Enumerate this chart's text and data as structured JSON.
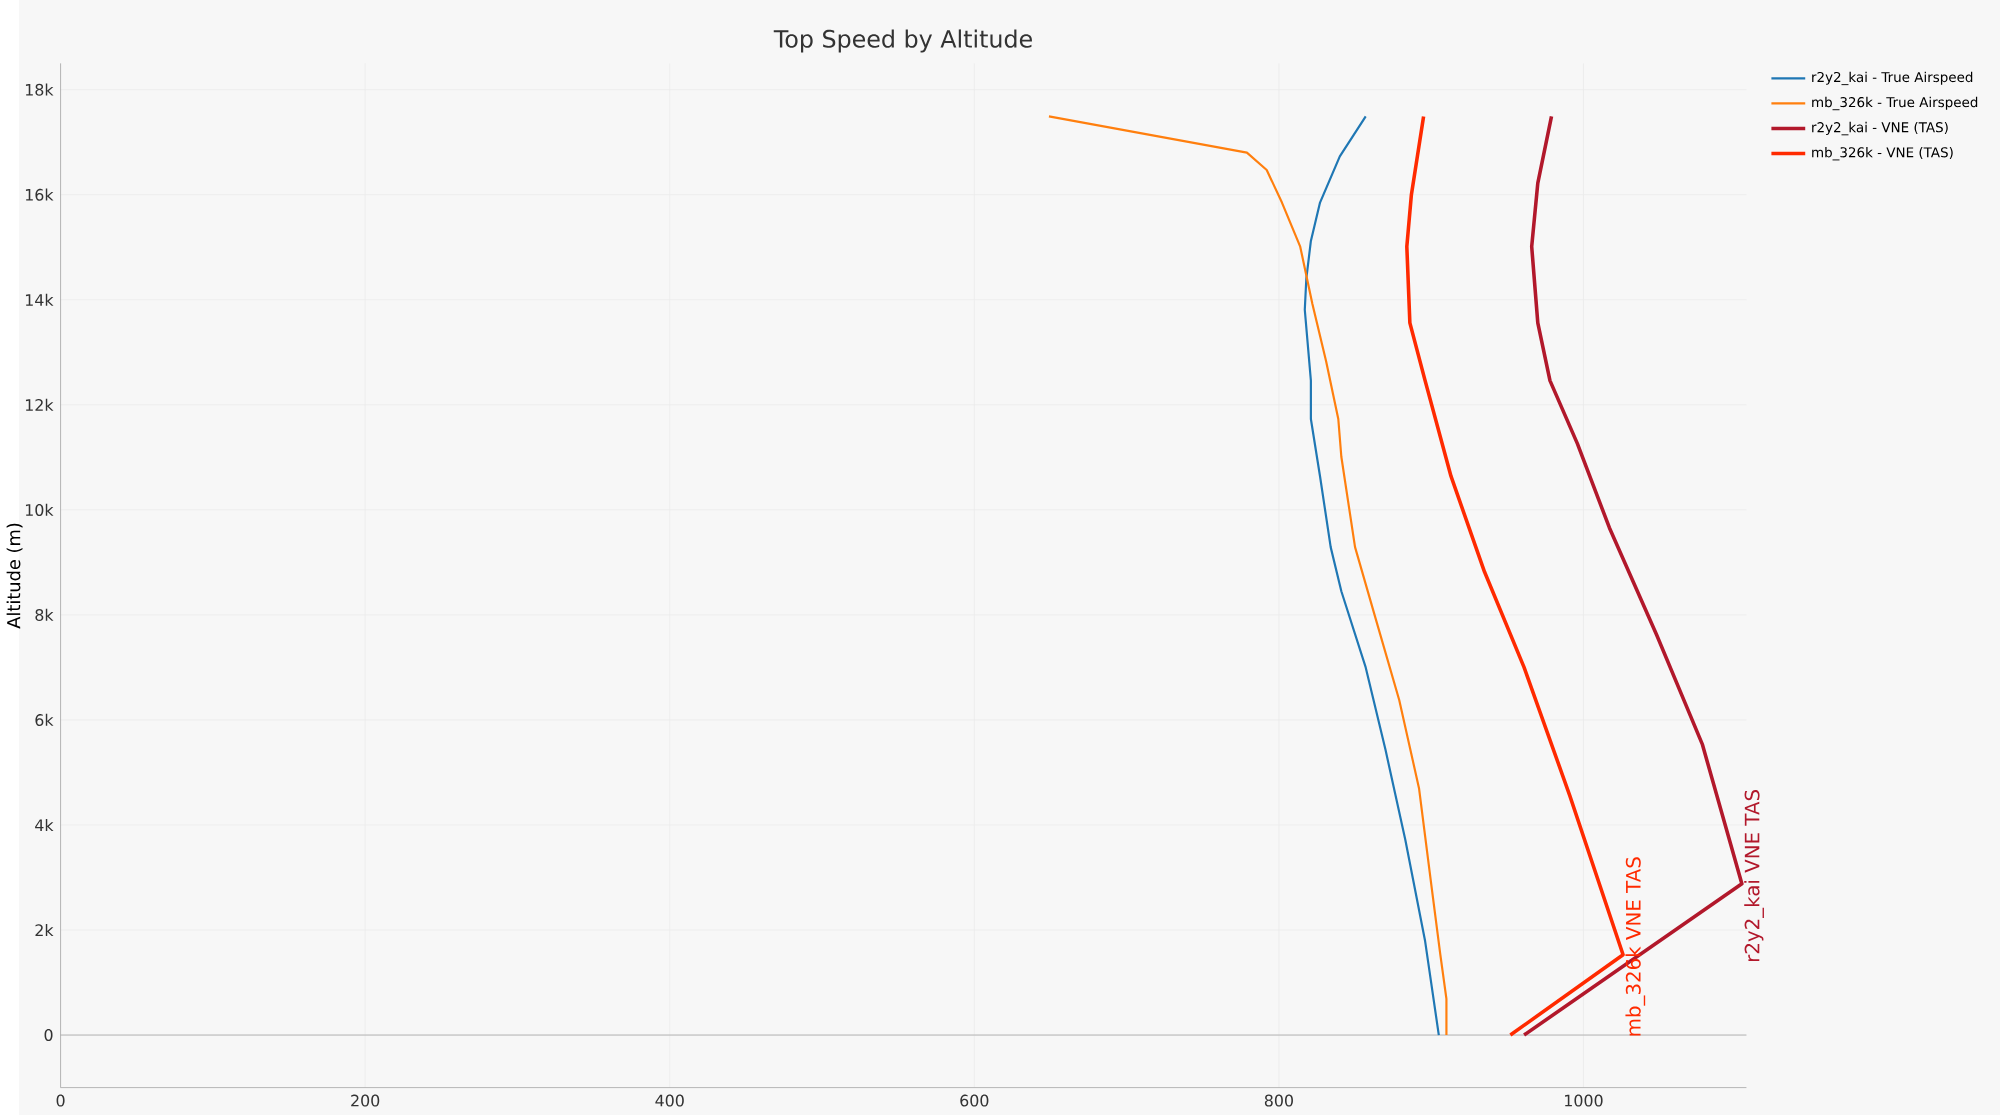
{
  "chart_data": {
    "type": "line",
    "title": "Top Speed by Altitude",
    "ylabel": "Altitude (m)",
    "xlim": [
      0,
      1107
    ],
    "xticks": [
      0,
      200,
      400,
      600,
      800,
      1000
    ],
    "ylim": [
      -1000,
      18500
    ],
    "yticks": [
      0,
      {
        "value": 2000,
        "label": "2k"
      },
      {
        "value": 4000,
        "label": "4k"
      },
      {
        "value": 6000,
        "label": "6k"
      },
      {
        "value": 8000,
        "label": "8k"
      },
      {
        "value": 10000,
        "label": "10k"
      },
      {
        "value": 12000,
        "label": "12k"
      },
      {
        "value": 14000,
        "label": "14k"
      },
      {
        "value": 16000,
        "label": "16k"
      },
      {
        "value": 18000,
        "label": "18k"
      }
    ],
    "grid": true,
    "legend": "top right",
    "marker": "none",
    "line_style": "solid",
    "series": [
      {
        "name": "r2y2_kai - True Airspeed",
        "color": "#1f77b4",
        "x": [
          857,
          840,
          827,
          821,
          818,
          817,
          821,
          821,
          827,
          834,
          841,
          857,
          870,
          883,
          896,
          905
        ],
        "values": [
          17490,
          16730,
          15850,
          15120,
          14400,
          13810,
          12460,
          11730,
          10640,
          9290,
          8450,
          7000,
          5430,
          3720,
          1790,
          0
        ]
      },
      {
        "name": "mb_326k - True Airspeed",
        "color": "#ff7f0e",
        "x": [
          649,
          779,
          792,
          802,
          814,
          822,
          831,
          839,
          841,
          850,
          863,
          879,
          892,
          900,
          906,
          910,
          910
        ],
        "values": [
          17490,
          16800,
          16470,
          15850,
          15010,
          13920,
          12830,
          11730,
          11010,
          9290,
          7980,
          6380,
          4700,
          2880,
          1530,
          690,
          0
        ]
      },
      {
        "name": "r2y2_kai - VNE (TAS)",
        "color": "#b2182b",
        "x": [
          979,
          970,
          966,
          970,
          978,
          996,
          1017,
          1048,
          1078,
          1104,
          961
        ],
        "values": [
          17490,
          16220,
          15010,
          13560,
          12460,
          11260,
          9660,
          7620,
          5540,
          2880,
          0
        ]
      },
      {
        "name": "mb_326k - VNE (TAS)",
        "color": "#ff2a00",
        "x": [
          895,
          887,
          884,
          886,
          896,
          913,
          935,
          961,
          991,
          1026,
          952
        ],
        "values": [
          17490,
          16000,
          15010,
          13560,
          12460,
          10640,
          8820,
          7000,
          4560,
          1530,
          0
        ]
      }
    ],
    "annotations": [
      {
        "text": "mb_326k VNE TAS",
        "x": 1026,
        "y": 1530
      },
      {
        "text": "r2y2_kai VNE TAS",
        "x": 1104,
        "y": 2880
      }
    ]
  }
}
